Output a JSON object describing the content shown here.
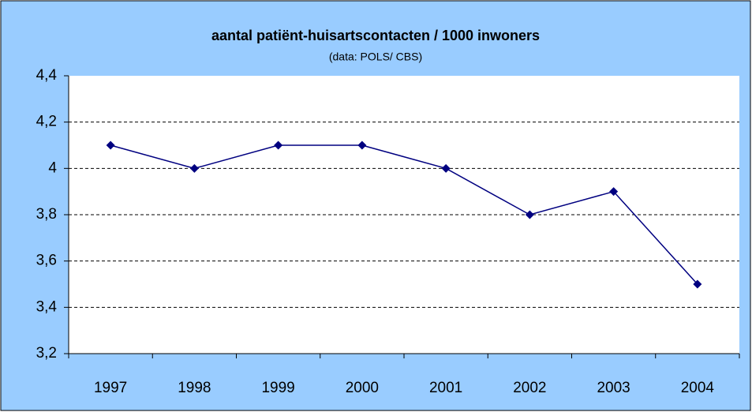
{
  "chart_data": {
    "type": "line",
    "title": "aantal patiënt-huisartscontacten / 1000 inwoners",
    "subtitle": "(data: POLS/ CBS)",
    "categories": [
      "1997",
      "1998",
      "1999",
      "2000",
      "2001",
      "2002",
      "2003",
      "2004"
    ],
    "series": [
      {
        "name": "aantal patiënt-huisartscontacten",
        "color": "#000080",
        "values": [
          4.1,
          4.0,
          4.1,
          4.1,
          4.0,
          3.8,
          3.9,
          3.5
        ]
      }
    ],
    "ylim": [
      3.2,
      4.4
    ],
    "yticks": [
      {
        "value": 3.2,
        "label": "3,2"
      },
      {
        "value": 3.4,
        "label": "3,4"
      },
      {
        "value": 3.6,
        "label": "3,6"
      },
      {
        "value": 3.8,
        "label": "3,8"
      },
      4,
      {
        "value": 4.2,
        "label": "4,2"
      },
      {
        "value": 4.4,
        "label": "4,4"
      }
    ],
    "grid": true,
    "legend": false
  }
}
